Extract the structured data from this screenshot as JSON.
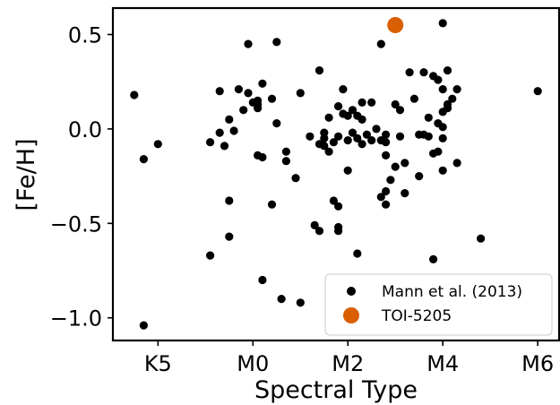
{
  "chart_data": {
    "type": "scatter",
    "title": "",
    "xlabel": "Spectral Type",
    "ylabel": "[Fe/H]",
    "xlim": [
      -2.95,
      6.45
    ],
    "ylim": [
      -1.12,
      0.64
    ],
    "x_ticks": [
      {
        "value": -2,
        "label": "K5"
      },
      {
        "value": 0,
        "label": "M0"
      },
      {
        "value": 2,
        "label": "M2"
      },
      {
        "value": 4,
        "label": "M4"
      },
      {
        "value": 6,
        "label": "M6"
      }
    ],
    "y_ticks": [
      {
        "value": 0.5,
        "label": "0.5"
      },
      {
        "value": 0.0,
        "label": "0.0"
      },
      {
        "value": -0.5,
        "label": "−0.5"
      },
      {
        "value": -1.0,
        "label": "−1.0"
      }
    ],
    "grid": false,
    "legend_position": "bottom-right",
    "series": [
      {
        "name": "Mann et al. (2013)",
        "color": "#000000",
        "marker": "circle-small",
        "points": [
          [
            -2.5,
            0.18
          ],
          [
            -2.3,
            -0.16
          ],
          [
            -2.3,
            -1.04
          ],
          [
            -2.0,
            -0.08
          ],
          [
            -0.9,
            -0.07
          ],
          [
            -0.9,
            -0.67
          ],
          [
            -0.7,
            0.2
          ],
          [
            -0.7,
            -0.02
          ],
          [
            -0.6,
            -0.09
          ],
          [
            -0.5,
            0.05
          ],
          [
            -0.5,
            -0.38
          ],
          [
            -0.5,
            -0.57
          ],
          [
            -0.4,
            -0.01
          ],
          [
            -0.3,
            0.21
          ],
          [
            -0.2,
            0.1
          ],
          [
            -0.1,
            0.45
          ],
          [
            -0.1,
            0.19
          ],
          [
            0.0,
            0.14
          ],
          [
            0.1,
            0.15
          ],
          [
            0.1,
            0.13
          ],
          [
            0.1,
            0.11
          ],
          [
            0.1,
            -0.14
          ],
          [
            0.2,
            0.24
          ],
          [
            0.2,
            -0.15
          ],
          [
            0.2,
            -0.8
          ],
          [
            0.4,
            0.16
          ],
          [
            0.4,
            -0.4
          ],
          [
            0.5,
            0.46
          ],
          [
            0.5,
            0.03
          ],
          [
            0.6,
            -0.9
          ],
          [
            0.7,
            -0.12
          ],
          [
            0.7,
            -0.17
          ],
          [
            0.9,
            -0.26
          ],
          [
            1.0,
            0.19
          ],
          [
            1.0,
            -0.92
          ],
          [
            1.2,
            -0.04
          ],
          [
            1.3,
            -0.51
          ],
          [
            1.4,
            0.31
          ],
          [
            1.4,
            -0.08
          ],
          [
            1.4,
            -0.54
          ],
          [
            1.5,
            -0.02
          ],
          [
            1.5,
            -0.05
          ],
          [
            1.5,
            -0.09
          ],
          [
            1.6,
            0.06
          ],
          [
            1.6,
            -0.12
          ],
          [
            1.7,
            -0.07
          ],
          [
            1.7,
            -0.38
          ],
          [
            1.8,
            -0.04
          ],
          [
            1.8,
            -0.41
          ],
          [
            1.8,
            -0.52
          ],
          [
            1.8,
            -0.54
          ],
          [
            1.8,
            0.12
          ],
          [
            1.9,
            0.21
          ],
          [
            1.9,
            0.08
          ],
          [
            2.0,
            0.07
          ],
          [
            2.0,
            -0.06
          ],
          [
            2.0,
            -0.22
          ],
          [
            2.1,
            0.1
          ],
          [
            2.1,
            -0.02
          ],
          [
            2.2,
            0.07
          ],
          [
            2.2,
            -0.05
          ],
          [
            2.2,
            -0.66
          ],
          [
            2.3,
            0.14
          ],
          [
            2.3,
            0.05
          ],
          [
            2.3,
            -0.08
          ],
          [
            2.4,
            -0.03
          ],
          [
            2.5,
            0.14
          ],
          [
            2.5,
            -0.06
          ],
          [
            2.6,
            0.0
          ],
          [
            2.7,
            0.45
          ],
          [
            2.7,
            -0.06
          ],
          [
            2.7,
            -0.36
          ],
          [
            2.8,
            -0.03
          ],
          [
            2.8,
            -0.07
          ],
          [
            2.8,
            -0.14
          ],
          [
            2.8,
            -0.33
          ],
          [
            2.8,
            -0.4
          ],
          [
            2.9,
            -0.27
          ],
          [
            3.0,
            0.13
          ],
          [
            3.0,
            -0.2
          ],
          [
            3.1,
            0.1
          ],
          [
            3.1,
            -0.04
          ],
          [
            3.2,
            -0.18
          ],
          [
            3.2,
            -0.34
          ],
          [
            3.3,
            0.3
          ],
          [
            3.4,
            0.16
          ],
          [
            3.5,
            -0.03
          ],
          [
            3.5,
            -0.25
          ],
          [
            3.6,
            0.3
          ],
          [
            3.6,
            -0.03
          ],
          [
            3.7,
            0.06
          ],
          [
            3.7,
            -0.04
          ],
          [
            3.8,
            0.28
          ],
          [
            3.8,
            -0.13
          ],
          [
            3.8,
            -0.69
          ],
          [
            3.9,
            0.26
          ],
          [
            3.9,
            -0.12
          ],
          [
            3.9,
            0.03
          ],
          [
            4.0,
            0.56
          ],
          [
            4.0,
            0.21
          ],
          [
            4.0,
            0.09
          ],
          [
            4.0,
            0.01
          ],
          [
            4.0,
            -0.05
          ],
          [
            4.0,
            -0.22
          ],
          [
            4.1,
            0.31
          ],
          [
            4.1,
            0.13
          ],
          [
            4.1,
            0.11
          ],
          [
            4.2,
            0.16
          ],
          [
            4.3,
            0.21
          ],
          [
            4.3,
            -0.18
          ],
          [
            4.8,
            -0.58
          ],
          [
            6.0,
            0.2
          ]
        ]
      },
      {
        "name": "TOI-5205",
        "color": "#d95f02",
        "marker": "circle-large",
        "points": [
          [
            3.0,
            0.55
          ]
        ]
      }
    ]
  }
}
